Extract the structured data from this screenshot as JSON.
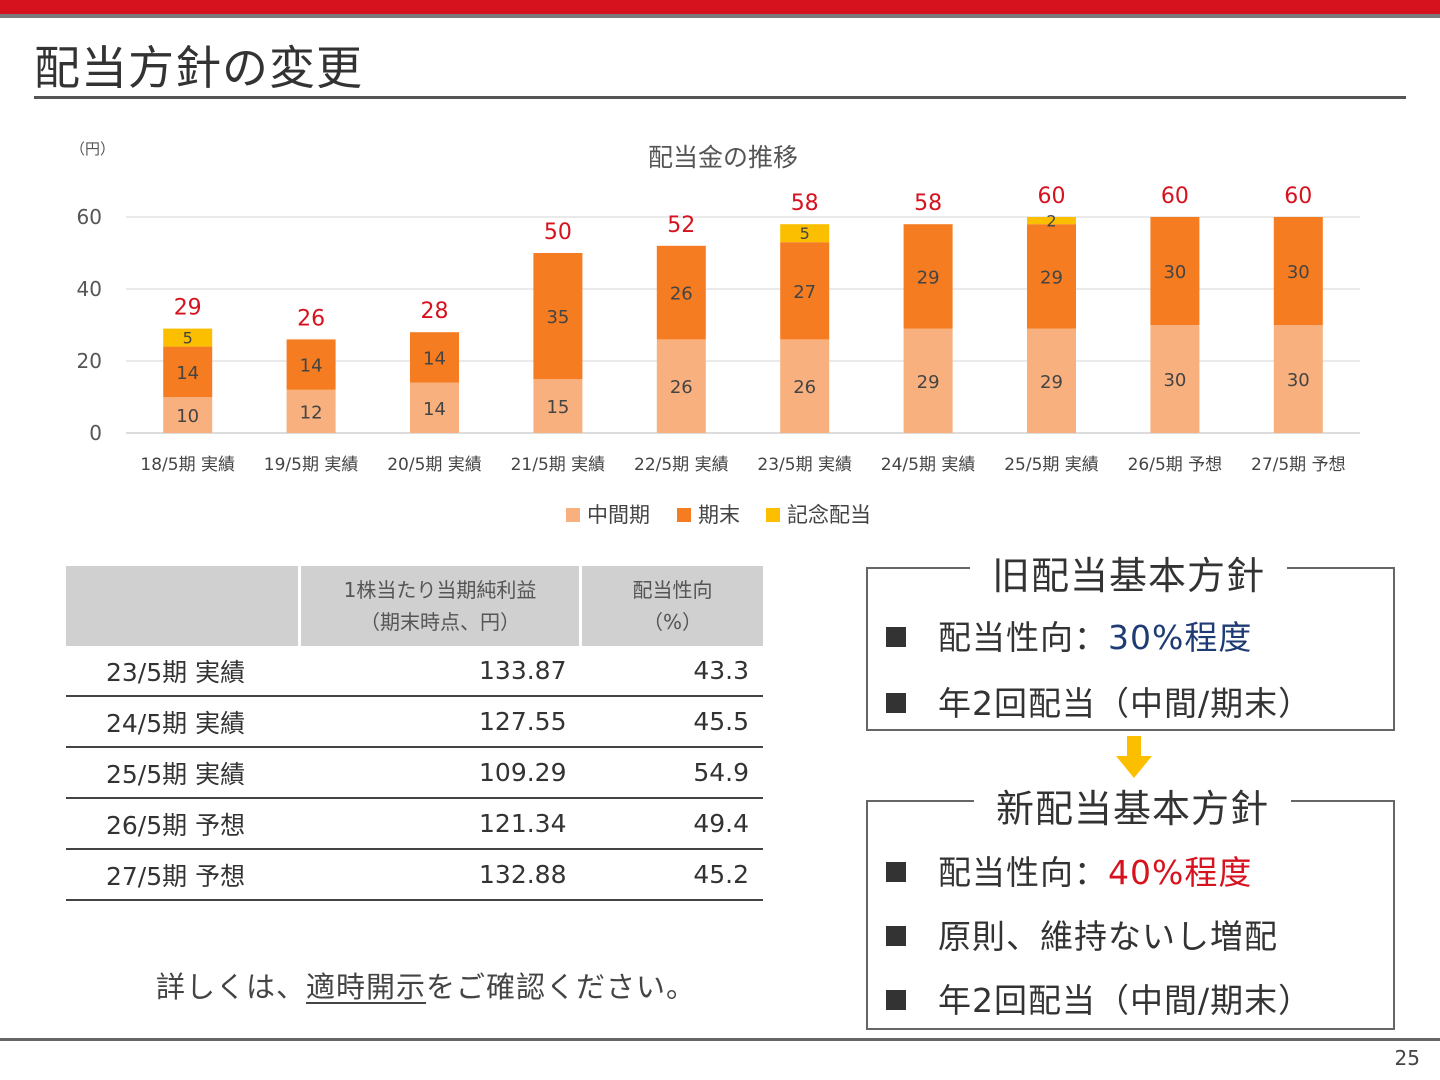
{
  "page": {
    "title": "配当方針の変更",
    "page_number": "25"
  },
  "colors": {
    "accent": "#d7121f",
    "interim": "#f8b07e",
    "final": "#f57c20",
    "commemorative": "#fbbf00",
    "blue_text": "#1f3b73"
  },
  "chart_data": {
    "type": "bar",
    "stacked": true,
    "title": "配当金の推移",
    "unit_label": "（円）",
    "ylim": [
      0,
      60
    ],
    "yticks": [
      0,
      20,
      40,
      60
    ],
    "grid": true,
    "legend_position": "bottom",
    "categories": [
      "18/5期 実績",
      "19/5期 実績",
      "20/5期 実績",
      "21/5期 実績",
      "22/5期 実績",
      "23/5期 実績",
      "24/5期 実績",
      "25/5期 実績",
      "26/5期 予想",
      "27/5期 予想"
    ],
    "series": [
      {
        "name": "中間期",
        "color": "#f8b07e",
        "values": [
          10,
          12,
          14,
          15,
          26,
          26,
          29,
          29,
          30,
          30
        ]
      },
      {
        "name": "期末",
        "color": "#f57c20",
        "values": [
          14,
          14,
          14,
          35,
          26,
          27,
          29,
          29,
          30,
          30
        ]
      },
      {
        "name": "記念配当",
        "color": "#fbbf00",
        "values": [
          5,
          0,
          0,
          0,
          0,
          5,
          0,
          2,
          0,
          0
        ]
      }
    ],
    "totals": [
      29,
      26,
      28,
      50,
      52,
      58,
      58,
      60,
      60,
      60
    ]
  },
  "table": {
    "headers": [
      "",
      "1株当たり当期純利益\n（期末時点、円）",
      "配当性向\n（%）"
    ],
    "rows": [
      {
        "label": "23/5期 実績",
        "eps": "133.87",
        "payout": "43.3"
      },
      {
        "label": "24/5期 実績",
        "eps": "127.55",
        "payout": "45.5"
      },
      {
        "label": "25/5期 実績",
        "eps": "109.29",
        "payout": "54.9"
      },
      {
        "label": "26/5期 予想",
        "eps": "121.34",
        "payout": "49.4"
      },
      {
        "label": "27/5期 予想",
        "eps": "132.88",
        "payout": "45.2"
      }
    ]
  },
  "note": {
    "prefix": "詳しくは、",
    "link": "適時開示",
    "suffix": "をご確認ください。"
  },
  "old_policy": {
    "title": "旧配当基本方針",
    "item1_label": "配当性向：",
    "item1_value": "30%程度",
    "item2": "年2回配当（中間/期末）"
  },
  "new_policy": {
    "title": "新配当基本方針",
    "item1_label": "配当性向：",
    "item1_value": "40%程度",
    "item2": "原則、維持ないし増配",
    "item3": "年2回配当（中間/期末）"
  }
}
